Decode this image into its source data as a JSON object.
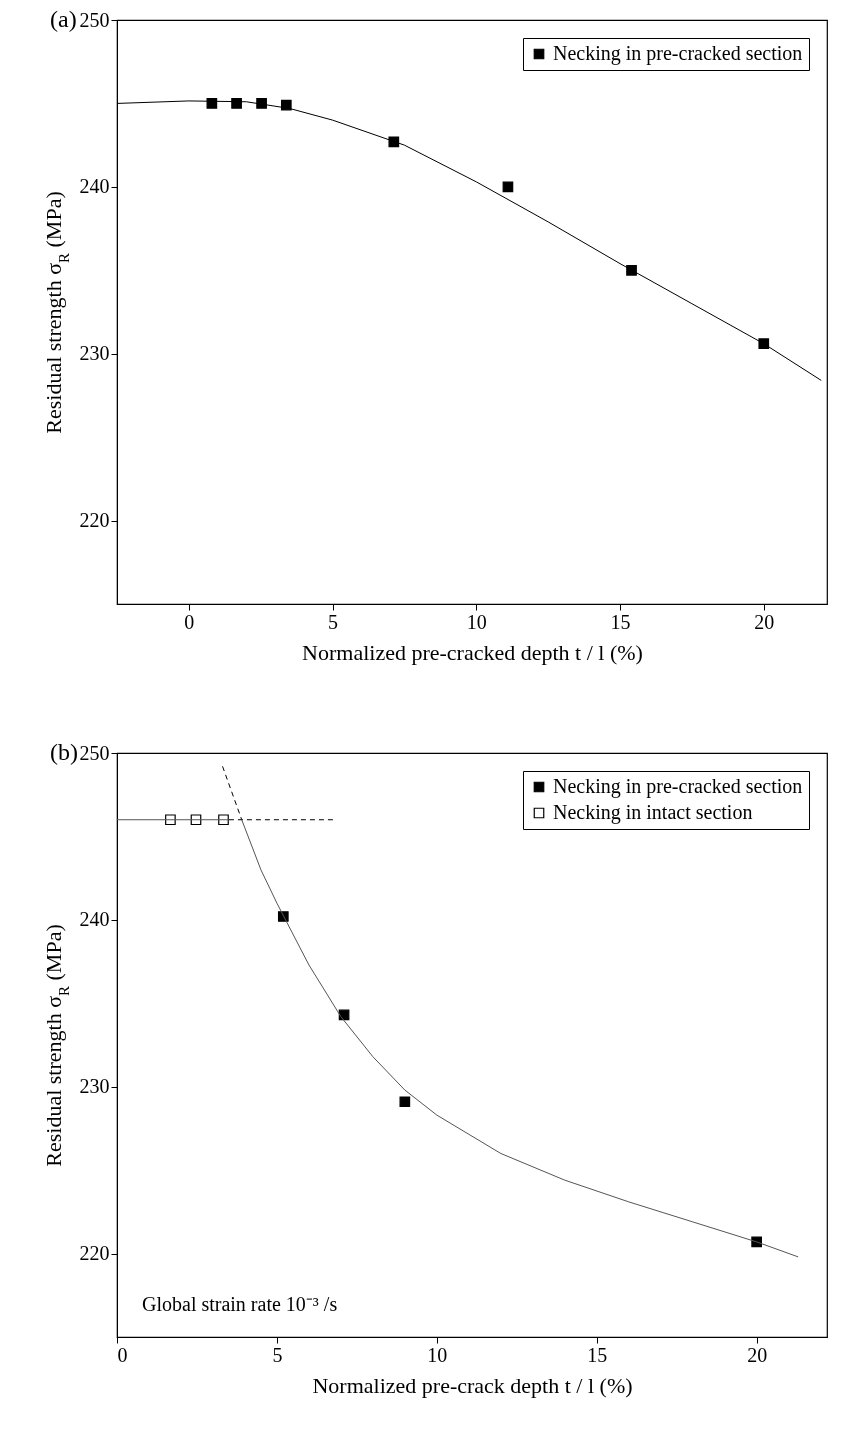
{
  "chart_data": [
    {
      "type": "scatter",
      "title": "(a)",
      "xlabel": "Normalized pre-cracked depth t / l (%)",
      "ylabel": "Residual strength σ$_{R}$ (MPa)",
      "xlim": [
        -2.5,
        22.2
      ],
      "xticks": [
        0,
        5,
        10,
        15,
        20
      ],
      "ylim": [
        215,
        250
      ],
      "yticks": [
        220,
        230,
        240,
        250
      ],
      "grid": false,
      "legend": "top right",
      "series": [
        {
          "name": "Necking in pre-cracked section",
          "color": "#000000",
          "marker": "square",
          "x": [
            0.8,
            1.66,
            2.53,
            3.39,
            7.13,
            11.1,
            15.4,
            20
          ],
          "values": [
            245.0,
            245.0,
            245.0,
            244.9,
            242.7,
            240.0,
            235.0,
            230.6
          ]
        },
        {
          "type": "line",
          "color": "#000000",
          "x": [
            -2.5,
            0,
            2,
            3.5,
            5,
            7.5,
            10,
            12.5,
            15,
            17.5,
            20,
            22
          ],
          "values": [
            245.0,
            245.15,
            245.1,
            244.7,
            244.0,
            242.5,
            240.3,
            237.9,
            235.4,
            233.0,
            230.6,
            228.4
          ]
        }
      ]
    },
    {
      "type": "scatter",
      "title": "(b)",
      "xlabel": "Normalized pre-crack depth t / l (%)",
      "ylabel": "Residual strength σ$_{R}$ (MPa)",
      "xlim": [
        0,
        22.2
      ],
      "xticks": [
        0,
        5,
        10,
        15,
        20
      ],
      "ylim": [
        215,
        250
      ],
      "yticks": [
        220,
        230,
        240,
        250
      ],
      "grid": false,
      "legend": "top right",
      "annotations": [
        "Global strain rate 10⁻³ /s"
      ],
      "series": [
        {
          "name": "Necking in pre-cracked section",
          "color": "#000000",
          "marker": "square",
          "x": [
            5.2,
            7.1,
            9.0,
            20.0
          ],
          "values": [
            240.2,
            234.3,
            229.1,
            220.7
          ]
        },
        {
          "name": "Necking in intact section",
          "color": "#ffffff",
          "marker": "square",
          "x": [
            1.67,
            2.47,
            3.33
          ],
          "values": [
            246.0,
            246.0,
            246.0
          ]
        },
        {
          "type": "line",
          "color": "#555555",
          "x": [
            0,
            3.5
          ],
          "values": [
            246.0,
            246.0
          ]
        },
        {
          "type": "line",
          "color": "#000000",
          "line_style": "dashed",
          "x": [
            3.5,
            6.8
          ],
          "values": [
            246.0,
            246.0
          ]
        },
        {
          "type": "line",
          "color": "#000000",
          "line_style": "dashed",
          "x": [
            3.3,
            3.9
          ],
          "values": [
            249.2,
            246.0
          ]
        },
        {
          "type": "line",
          "color": "#555555",
          "x": [
            3.9,
            4.5,
            5,
            6,
            7,
            8,
            9,
            10,
            12,
            14,
            16,
            18,
            20,
            21.3
          ],
          "values": [
            246.0,
            243.0,
            241.0,
            237.3,
            234.2,
            231.8,
            229.8,
            228.3,
            226.0,
            224.4,
            223.1,
            221.9,
            220.7,
            219.8
          ]
        }
      ]
    }
  ]
}
